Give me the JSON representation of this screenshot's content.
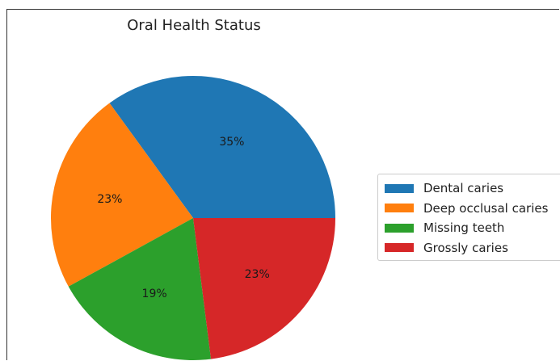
{
  "chart_data": {
    "type": "pie",
    "title": "Oral Health Status",
    "categories": [
      "Dental caries",
      "Deep occlusal caries",
      "Missing teeth",
      "Grossly caries"
    ],
    "values": [
      35,
      23,
      19,
      23
    ],
    "value_labels": [
      "35%",
      "23%",
      "19%",
      "23%"
    ],
    "colors": [
      "#1f77b4",
      "#ff7f0e",
      "#2ca02c",
      "#d62728"
    ],
    "start_angle_deg": 0,
    "direction": "counterclockwise",
    "legend": {
      "placement": "right",
      "entries": [
        "Dental caries",
        "Deep occlusal caries",
        "Missing teeth",
        "Grossly caries"
      ]
    }
  }
}
